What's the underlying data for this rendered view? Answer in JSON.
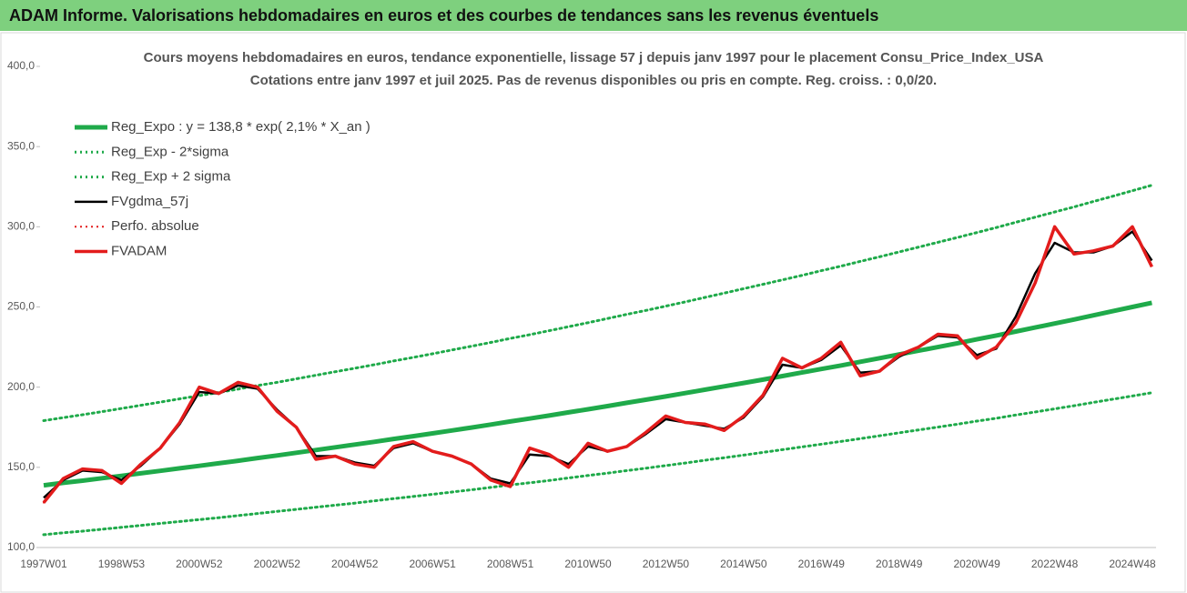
{
  "header": {
    "title": "ADAM Informe. Valorisations hebdomadaires en euros et des courbes de tendances sans les revenus éventuels"
  },
  "chart_data": {
    "type": "line",
    "title": "Cours moyens hebdomadaires en euros, tendance exponentielle, lissage 57 j depuis janv 1997 pour le placement Consu_Price_Index_USA",
    "subtitle": "Cotations entre janv 1997 et juil 2025. Pas de revenus disponibles ou pris en compte. Reg. croiss. : 0,0/20.",
    "categories": [
      "1997W01",
      null,
      null,
      null,
      "1998W53",
      null,
      null,
      null,
      "2000W52",
      null,
      null,
      null,
      "2002W52",
      null,
      null,
      null,
      "2004W52",
      null,
      null,
      null,
      "2006W51",
      null,
      null,
      null,
      "2008W51",
      null,
      null,
      null,
      "2010W50",
      null,
      null,
      null,
      "2012W50",
      null,
      null,
      null,
      "2014W50",
      null,
      null,
      null,
      "2016W49",
      null,
      null,
      null,
      "2018W49",
      null,
      null,
      null,
      "2020W49",
      null,
      null,
      null,
      "2022W48",
      null,
      null,
      null,
      "2024W48",
      null
    ],
    "ylim": [
      100,
      400
    ],
    "yticks": [
      {
        "value": 100,
        "label": "100,0"
      },
      {
        "value": 150,
        "label": "150,0"
      },
      {
        "value": 200,
        "label": "200,0"
      },
      {
        "value": 250,
        "label": "250,0"
      },
      {
        "value": 300,
        "label": "300,0"
      },
      {
        "value": 350,
        "label": "350,0"
      },
      {
        "value": 400,
        "label": "400,0"
      }
    ],
    "legend": "top-left",
    "series": [
      {
        "name": "Reg_Expo : y = 138,8 * exp( 2,1% *  X_an )",
        "color": "#1faa4a",
        "width": 5,
        "dash": "solid",
        "values": [
          138.8,
          140.3,
          141.7,
          143.2,
          144.7,
          146.3,
          147.8,
          149.4,
          150.9,
          152.5,
          154.1,
          155.8,
          157.4,
          159.1,
          160.8,
          162.5,
          164.2,
          165.9,
          167.7,
          169.4,
          171.2,
          173.0,
          174.8,
          176.7,
          178.6,
          180.4,
          182.3,
          184.3,
          186.2,
          188.2,
          190.2,
          192.2,
          194.2,
          196.3,
          198.4,
          200.5,
          202.6,
          204.7,
          206.9,
          209.1,
          211.3,
          213.5,
          215.8,
          218.1,
          220.4,
          222.7,
          225.0,
          227.4,
          229.8,
          232.2,
          234.7,
          237.2,
          239.7,
          242.2,
          244.8,
          247.4,
          250.0,
          252.6
        ]
      },
      {
        "name": "Reg_Exp - 2*sigma",
        "color": "#1faa4a",
        "width": 3,
        "dash": "dotted",
        "values": [
          108.0,
          109.2,
          110.2,
          111.4,
          112.6,
          113.8,
          115.0,
          116.2,
          117.4,
          118.6,
          119.9,
          121.2,
          122.5,
          123.8,
          125.1,
          126.4,
          127.7,
          129.1,
          130.5,
          131.8,
          133.2,
          134.6,
          136.0,
          137.5,
          139.0,
          140.4,
          141.8,
          143.4,
          144.9,
          146.4,
          148.0,
          149.5,
          151.1,
          152.7,
          154.4,
          156.0,
          157.6,
          159.3,
          161.0,
          162.7,
          164.4,
          166.1,
          167.9,
          169.7,
          171.5,
          173.3,
          175.1,
          176.9,
          178.8,
          180.6,
          182.6,
          184.5,
          186.5,
          188.4,
          190.5,
          192.5,
          194.5,
          196.5
        ]
      },
      {
        "name": "Reg_Exp + 2 sigma",
        "color": "#1faa4a",
        "width": 3,
        "dash": "dotted",
        "values": [
          179.1,
          181.0,
          182.8,
          184.7,
          186.7,
          188.7,
          190.7,
          192.7,
          194.7,
          196.7,
          198.8,
          201.0,
          203.0,
          205.2,
          207.4,
          209.6,
          211.8,
          214.0,
          216.3,
          218.5,
          220.8,
          223.2,
          225.5,
          227.9,
          230.4,
          232.7,
          235.2,
          237.7,
          240.2,
          242.8,
          245.4,
          247.9,
          250.5,
          253.2,
          255.9,
          258.6,
          261.4,
          264.1,
          266.9,
          269.7,
          272.6,
          275.4,
          278.4,
          281.3,
          284.3,
          287.3,
          290.3,
          293.3,
          296.4,
          299.5,
          302.8,
          306.0,
          309.2,
          312.4,
          315.8,
          319.1,
          322.5,
          325.9
        ]
      },
      {
        "name": "FVgdma_57j",
        "color": "#000000",
        "width": 2.5,
        "dash": "solid",
        "values": [
          131,
          142,
          148,
          147,
          142,
          151,
          162,
          177,
          197,
          196,
          201,
          199,
          186,
          175,
          157,
          157,
          153,
          151,
          162,
          165,
          160,
          157,
          152,
          143,
          140,
          158,
          157,
          152,
          163,
          160,
          163,
          171,
          180,
          178,
          176,
          174,
          181,
          194,
          214,
          212,
          217,
          226,
          209,
          210,
          219,
          225,
          232,
          231,
          220,
          224,
          244,
          271,
          290,
          284,
          284,
          288,
          297,
          279
        ]
      },
      {
        "name": "Perfo. absolue",
        "color": "#e31c1c",
        "width": 2,
        "dash": "dotted",
        "values": [
          128,
          143,
          149,
          148,
          140,
          152,
          162,
          178,
          200,
          196,
          203,
          200,
          185,
          175,
          155,
          157,
          152,
          150,
          163,
          166,
          160,
          157,
          152,
          142,
          138,
          162,
          158,
          150,
          165,
          160,
          163,
          172,
          182,
          178,
          177,
          173,
          182,
          195,
          218,
          212,
          218,
          228,
          207,
          210,
          220,
          225,
          233,
          232,
          218,
          225,
          240,
          265,
          300,
          283,
          285,
          288,
          300,
          275
        ]
      },
      {
        "name": "FVADAM",
        "color": "#e31c1c",
        "width": 3.5,
        "dash": "solid",
        "values": [
          128,
          143,
          149,
          148,
          140,
          152,
          162,
          178,
          200,
          196,
          203,
          200,
          185,
          175,
          155,
          157,
          152,
          150,
          163,
          166,
          160,
          157,
          152,
          142,
          138,
          162,
          158,
          150,
          165,
          160,
          163,
          172,
          182,
          178,
          177,
          173,
          182,
          195,
          218,
          212,
          218,
          228,
          207,
          210,
          220,
          225,
          233,
          232,
          218,
          225,
          240,
          265,
          300,
          283,
          285,
          288,
          300,
          275
        ]
      }
    ]
  }
}
